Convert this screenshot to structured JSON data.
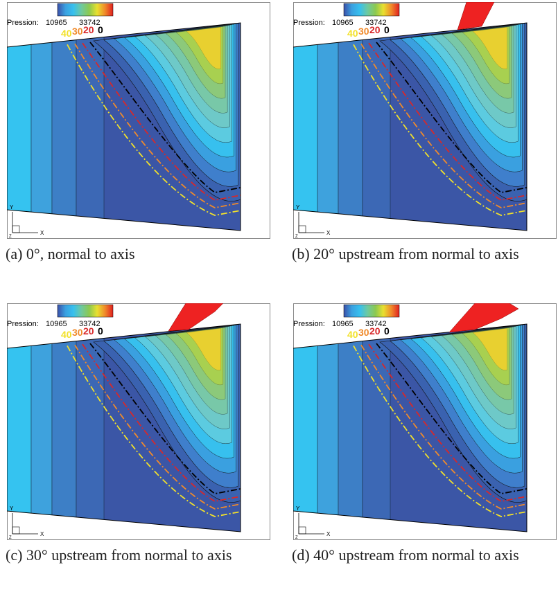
{
  "legend": {
    "title": "Pression:",
    "min": 10965,
    "max": 33742
  },
  "line_labels": [
    "40",
    "30",
    "20",
    "0"
  ],
  "axes": {
    "y": "Y",
    "x": "X",
    "z": "Z"
  },
  "panels": [
    {
      "caption": "(a) 0°, normal to axis"
    },
    {
      "caption": "(b) 20° upstream from normal to axis"
    },
    {
      "caption": "(c) 30° upstream from normal to axis"
    },
    {
      "caption": "(d) 40° upstream from normal to axis"
    }
  ]
}
